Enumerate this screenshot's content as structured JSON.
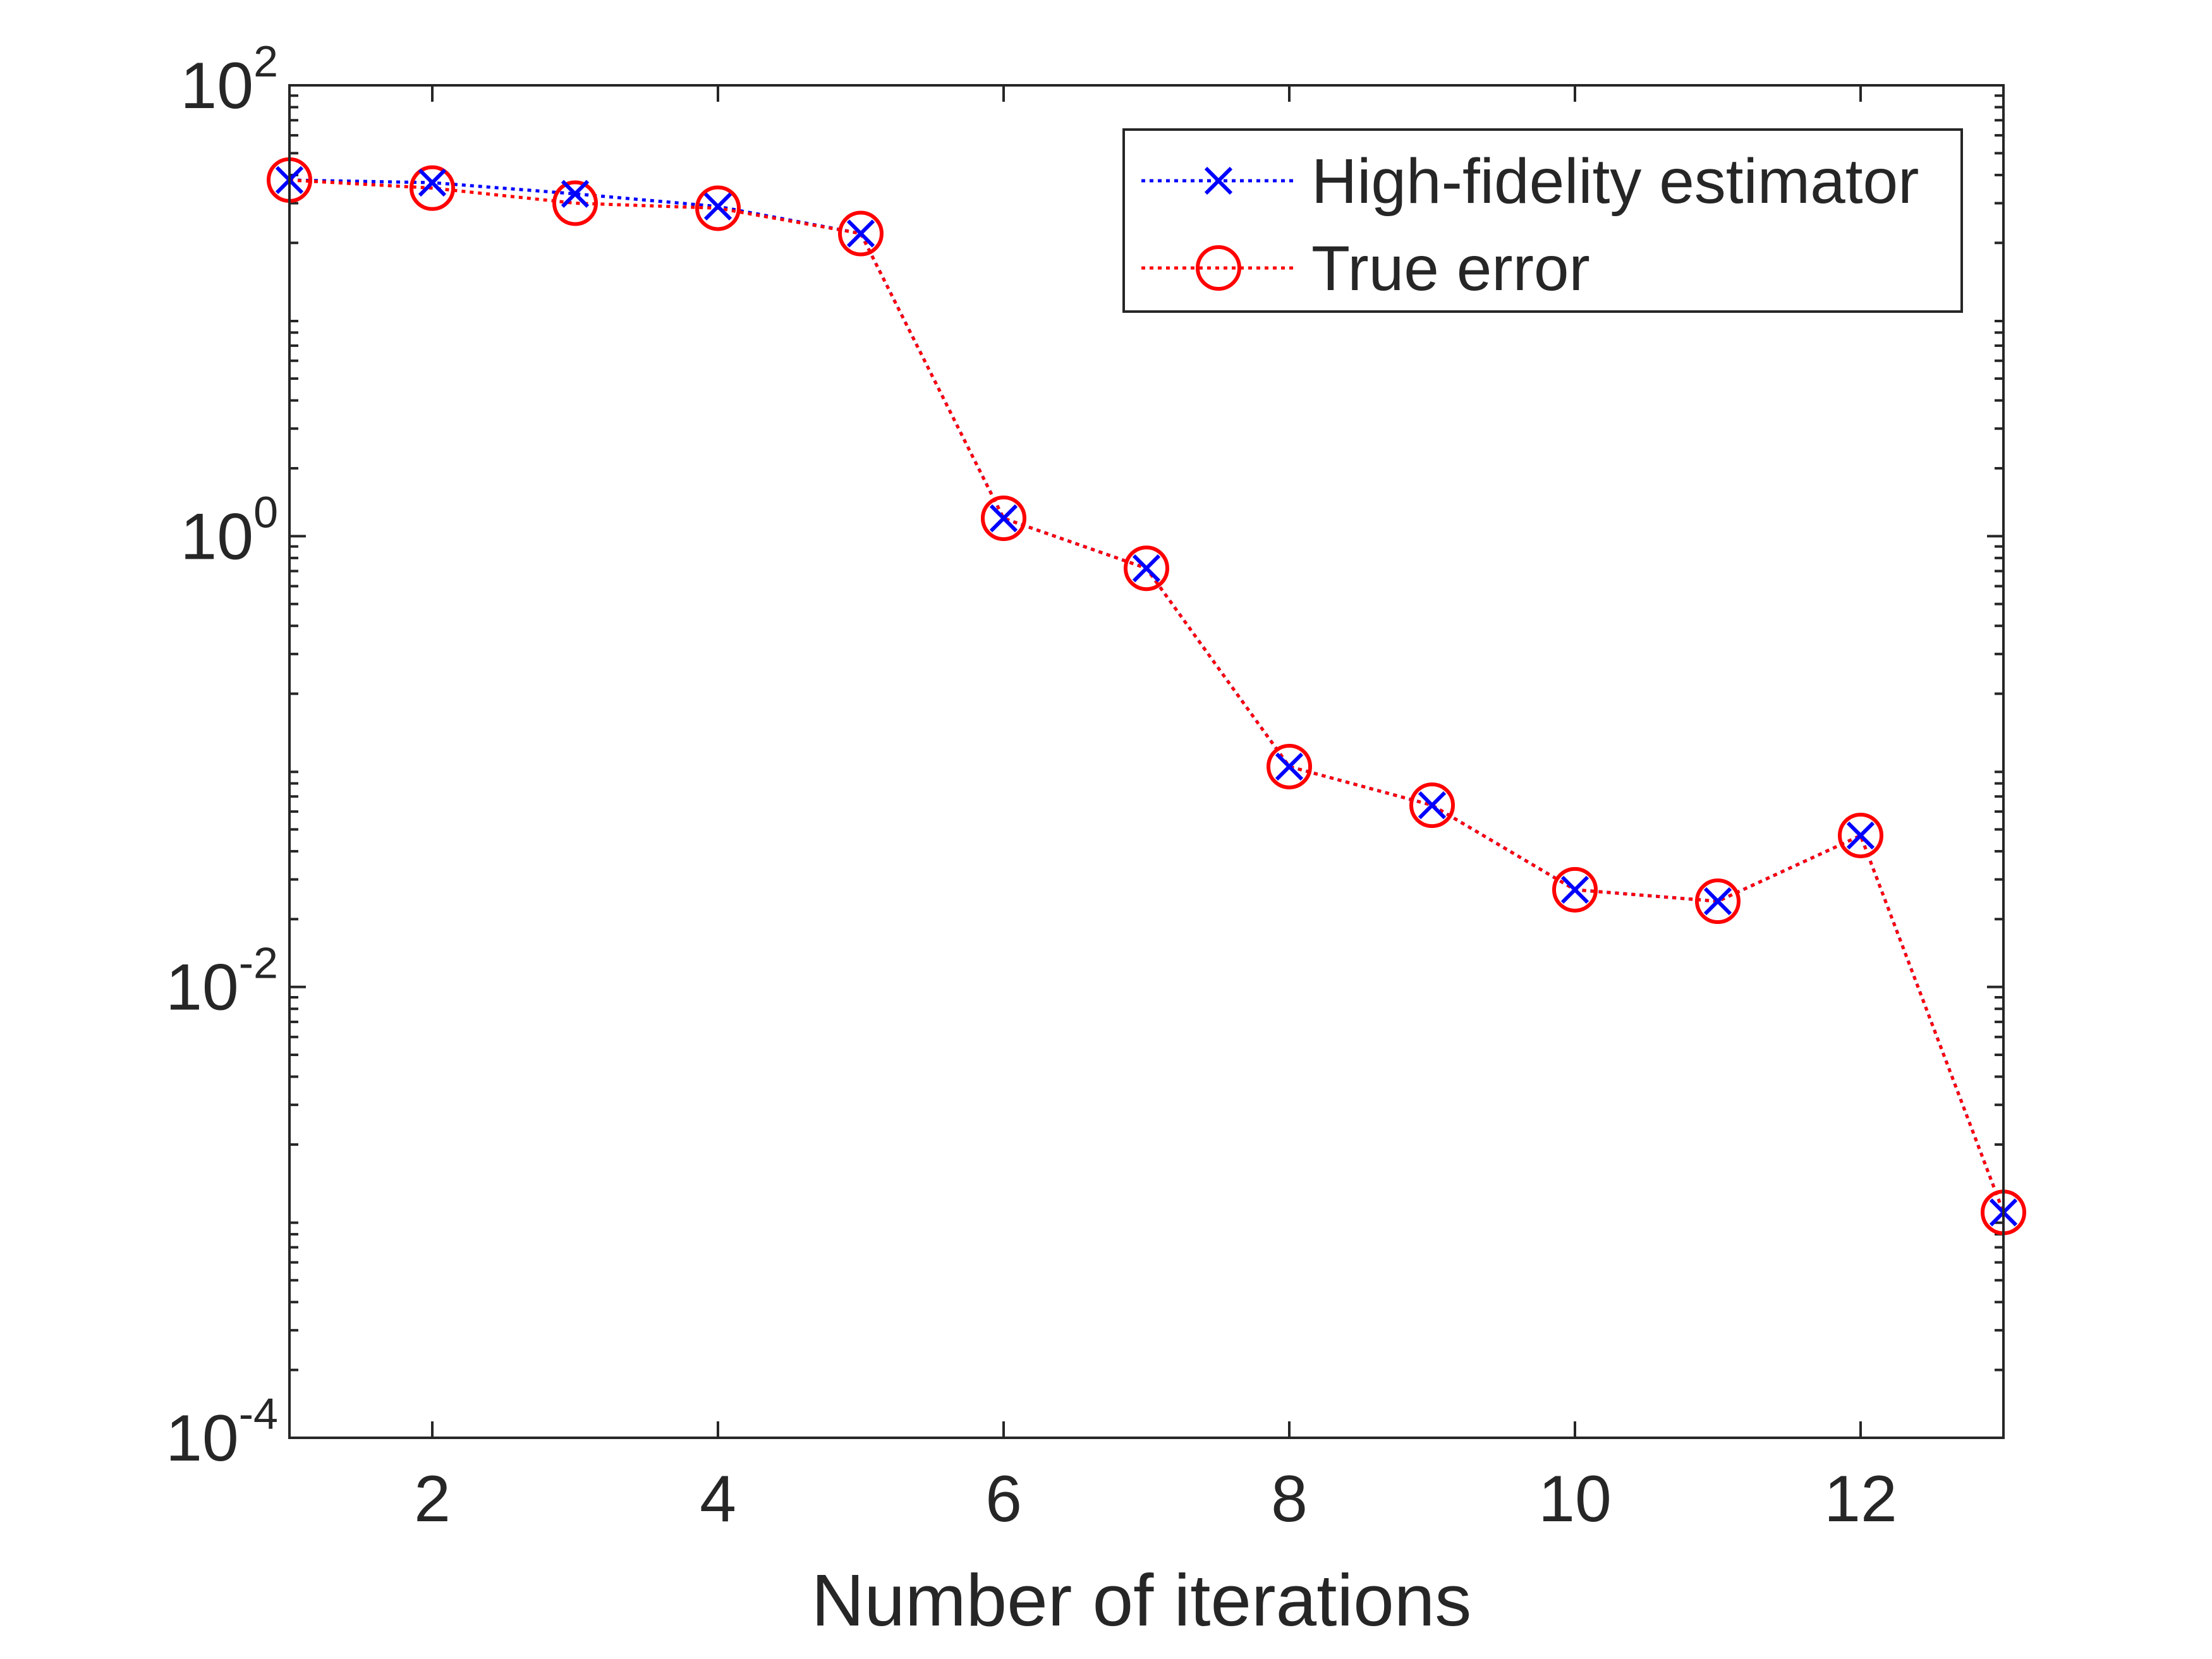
{
  "chart_data": {
    "type": "line",
    "title": "",
    "xlabel": "Number of iterations",
    "ylabel": "",
    "xlim": [
      1,
      13
    ],
    "ylim": [
      0.0001,
      100
    ],
    "yscale": "log",
    "grid": false,
    "legend_location": "top-right",
    "x_ticks": [
      2,
      4,
      6,
      8,
      10,
      12
    ],
    "x_tick_labels": [
      "2",
      "4",
      "6",
      "8",
      "10",
      "12"
    ],
    "y_ticks": [
      {
        "value": 100,
        "base": "10",
        "exp": "2"
      },
      {
        "value": 1,
        "base": "10",
        "exp": "0"
      },
      {
        "value": 0.01,
        "base": "10",
        "exp": "-2"
      },
      {
        "value": 0.0001,
        "base": "10",
        "exp": "-4"
      }
    ],
    "series": [
      {
        "name": "High-fidelity estimator",
        "color": "#0000ff",
        "marker": "x",
        "linestyle": "dotted",
        "x": [
          1,
          2,
          3,
          4,
          5,
          6,
          7,
          8,
          9,
          10,
          11,
          12,
          13
        ],
        "values": [
          38,
          37,
          33,
          29,
          22,
          1.2,
          0.72,
          0.095,
          0.064,
          0.027,
          0.024,
          0.047,
          0.001
        ]
      },
      {
        "name": "True error",
        "color": "#ff0000",
        "marker": "o",
        "linestyle": "dotted",
        "x": [
          1,
          2,
          3,
          4,
          5,
          6,
          7,
          8,
          9,
          10,
          11,
          12,
          13
        ],
        "values": [
          38,
          35,
          30,
          28.5,
          22,
          1.2,
          0.72,
          0.095,
          0.064,
          0.027,
          0.024,
          0.047,
          0.001
        ]
      }
    ]
  }
}
